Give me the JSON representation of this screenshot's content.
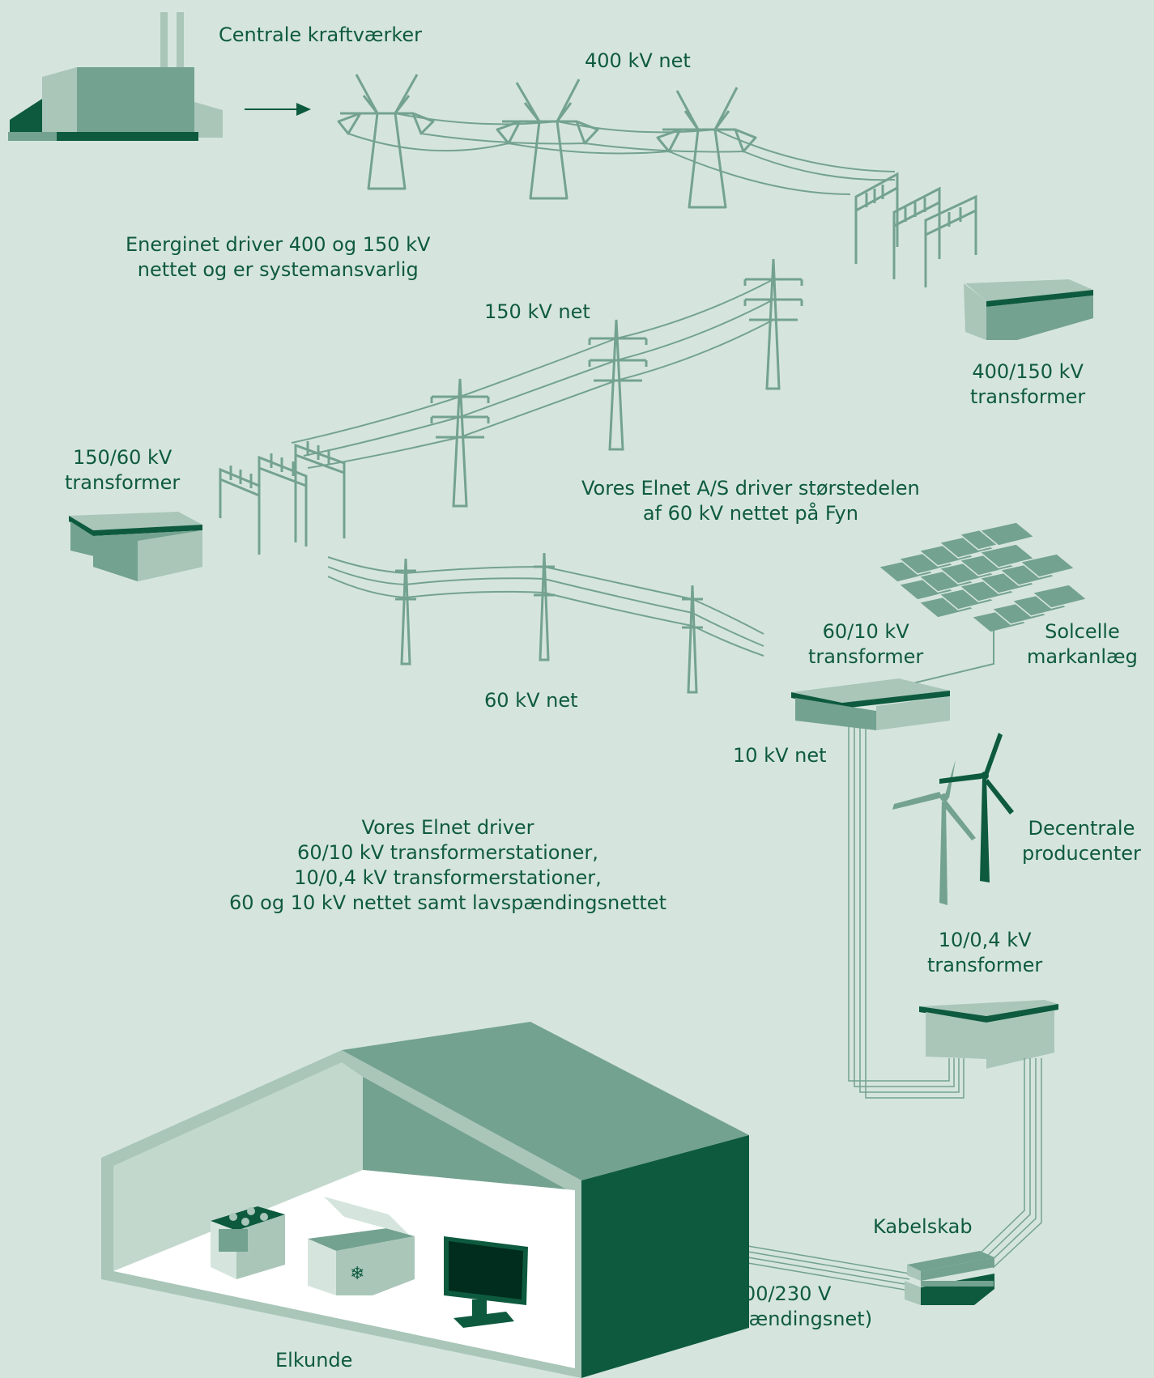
{
  "labels": {
    "power_plants": "Centrale kraftværker",
    "net_400": "400 kV net",
    "energinet_note": "Energinet driver 400 og 150 kV\nnettet og er systemansvarlig",
    "net_150": "150 kV net",
    "transformer_400_150": "400/150 kV\ntransformer",
    "transformer_150_60": "150/60 kV\ntransformer",
    "vores_60_note": "Vores Elnet A/S driver størstedelen\naf 60 kV nettet på Fyn",
    "net_60": "60 kV net",
    "transformer_60_10": "60/10 kV\ntransformer",
    "solar": "Solcelle\nmarkanlæg",
    "net_10": "10 kV net",
    "decentral": "Decentrale\nproducenter",
    "vores_note": "Vores Elnet driver\n60/10 kV transformerstationer,\n10/0,4 kV transformerstationer,\n60 og 10 kV nettet samt lavspændingsnettet",
    "transformer_10_04": "10/0,4 kV\ntransformer",
    "cable_cabinet": "Kabelskab",
    "low_voltage": "400/230 V\n(lavspændingsnet)",
    "customer": "Elkunde"
  },
  "colors": {
    "background": "#d5e5de",
    "dark": "#0d5a3f",
    "mid": "#74a290",
    "light": "#a9c6b8",
    "text": "#0f5a3e"
  }
}
